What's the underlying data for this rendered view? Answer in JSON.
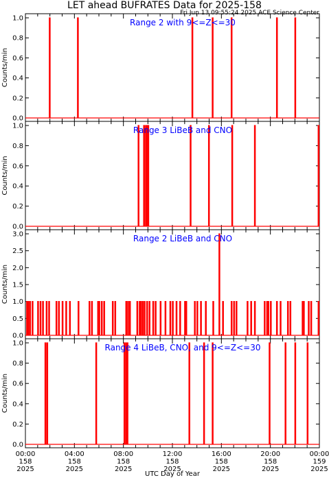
{
  "title": "LET ahead BUFRATES Data for 2025-158",
  "timestamp": "Fri Jun 13 09:55:24 2025 ACE Science Center",
  "xlabel": "UTC Day of Year",
  "colors": {
    "trace": "#ff0000",
    "label": "#0000ff",
    "axes": "#000000"
  },
  "x_ticks": [
    {
      "t": 0,
      "lines": [
        "00:00",
        "158",
        "2025"
      ]
    },
    {
      "t": 4,
      "lines": [
        "04:00",
        "158",
        "2025"
      ]
    },
    {
      "t": 8,
      "lines": [
        "08:00",
        "158",
        "2025"
      ]
    },
    {
      "t": 12,
      "lines": [
        "12:00",
        "158",
        "2025"
      ]
    },
    {
      "t": 16,
      "lines": [
        "16:00",
        "158",
        "2025"
      ]
    },
    {
      "t": 20,
      "lines": [
        "20:00",
        "158",
        "2025"
      ]
    },
    {
      "t": 24,
      "lines": [
        "00:00",
        "159",
        "2025"
      ]
    }
  ],
  "chart_data": [
    {
      "type": "line",
      "title": "Range 2 with 9<=Z<=30",
      "ylabel": "Counts/min",
      "ylim": [
        0,
        1.0
      ],
      "yticks": [
        "0.0",
        "0.2",
        "0.4",
        "0.6",
        "0.8",
        "1.0"
      ],
      "ytick_values": [
        0,
        0.2,
        0.4,
        0.6,
        0.8,
        1.0
      ],
      "xlim_hours": [
        0,
        24
      ],
      "spikes": [
        {
          "t": 1.95,
          "v": 1
        },
        {
          "t": 4.25,
          "v": 1
        },
        {
          "t": 13.6,
          "v": 1
        },
        {
          "t": 15.25,
          "v": 1
        },
        {
          "t": 16.8,
          "v": 1
        },
        {
          "t": 20.5,
          "v": 1
        },
        {
          "t": 22.0,
          "v": 1
        }
      ]
    },
    {
      "type": "line",
      "title": "Range 3 LiBeB and CNO",
      "ylabel": "Counts/min",
      "ylim": [
        0,
        1.0
      ],
      "yticks": [
        "0.0",
        "0.2",
        "0.4",
        "0.6",
        "0.8",
        "1.0"
      ],
      "ytick_values": [
        0,
        0.2,
        0.4,
        0.6,
        0.8,
        1.0
      ],
      "xlim_hours": [
        0,
        24
      ],
      "spikes": [
        {
          "t": 9.2,
          "v": 1
        },
        {
          "t": 9.65,
          "v": 1
        },
        {
          "t": 9.8,
          "v": 1
        },
        {
          "t": 9.9,
          "v": 1
        },
        {
          "t": 10.0,
          "v": 1
        },
        {
          "t": 13.45,
          "v": 1
        },
        {
          "t": 14.95,
          "v": 1
        },
        {
          "t": 16.85,
          "v": 1
        },
        {
          "t": 18.7,
          "v": 1
        },
        {
          "t": 23.9,
          "v": 1
        }
      ]
    },
    {
      "type": "line",
      "title": "Range 2 LiBeB and CNO",
      "ylabel": "Counts/min",
      "ylim": [
        0,
        3.0
      ],
      "yticks": [
        "0.0",
        "0.5",
        "1.0",
        "1.5",
        "2.0",
        "2.5",
        "3.0"
      ],
      "ytick_values": [
        0,
        0.5,
        1.0,
        1.5,
        2.0,
        2.5,
        3.0
      ],
      "xlim_hours": [
        0,
        24
      ],
      "spikes": [
        {
          "t": 0.1,
          "v": 1
        },
        {
          "t": 0.2,
          "v": 1
        },
        {
          "t": 0.35,
          "v": 1
        },
        {
          "t": 0.55,
          "v": 1
        },
        {
          "t": 1.0,
          "v": 1
        },
        {
          "t": 1.2,
          "v": 1
        },
        {
          "t": 1.4,
          "v": 1
        },
        {
          "t": 1.7,
          "v": 1
        },
        {
          "t": 1.9,
          "v": 1
        },
        {
          "t": 2.5,
          "v": 1
        },
        {
          "t": 2.7,
          "v": 1
        },
        {
          "t": 3.0,
          "v": 1
        },
        {
          "t": 3.3,
          "v": 1
        },
        {
          "t": 3.6,
          "v": 1
        },
        {
          "t": 4.3,
          "v": 1
        },
        {
          "t": 5.2,
          "v": 1
        },
        {
          "t": 5.4,
          "v": 1
        },
        {
          "t": 5.9,
          "v": 1
        },
        {
          "t": 6.0,
          "v": 1
        },
        {
          "t": 6.2,
          "v": 1
        },
        {
          "t": 6.4,
          "v": 1
        },
        {
          "t": 7.1,
          "v": 1
        },
        {
          "t": 7.3,
          "v": 1
        },
        {
          "t": 8.2,
          "v": 1
        },
        {
          "t": 8.35,
          "v": 1
        },
        {
          "t": 8.5,
          "v": 1
        },
        {
          "t": 9.1,
          "v": 1
        },
        {
          "t": 9.3,
          "v": 1
        },
        {
          "t": 9.4,
          "v": 1
        },
        {
          "t": 9.55,
          "v": 1
        },
        {
          "t": 9.7,
          "v": 1
        },
        {
          "t": 9.9,
          "v": 1
        },
        {
          "t": 10.1,
          "v": 1
        },
        {
          "t": 10.4,
          "v": 1
        },
        {
          "t": 10.6,
          "v": 1
        },
        {
          "t": 11.0,
          "v": 1
        },
        {
          "t": 11.4,
          "v": 1
        },
        {
          "t": 11.8,
          "v": 1
        },
        {
          "t": 12.0,
          "v": 1
        },
        {
          "t": 12.3,
          "v": 1
        },
        {
          "t": 12.6,
          "v": 1
        },
        {
          "t": 13.0,
          "v": 1
        },
        {
          "t": 13.1,
          "v": 1
        },
        {
          "t": 13.8,
          "v": 1
        },
        {
          "t": 14.0,
          "v": 1
        },
        {
          "t": 14.3,
          "v": 1
        },
        {
          "t": 14.7,
          "v": 1
        },
        {
          "t": 15.3,
          "v": 1
        },
        {
          "t": 15.8,
          "v": 3
        },
        {
          "t": 16.1,
          "v": 1
        },
        {
          "t": 16.8,
          "v": 1
        },
        {
          "t": 17.0,
          "v": 1
        },
        {
          "t": 17.2,
          "v": 1
        },
        {
          "t": 18.1,
          "v": 1
        },
        {
          "t": 18.4,
          "v": 1
        },
        {
          "t": 18.7,
          "v": 1
        },
        {
          "t": 19.5,
          "v": 1
        },
        {
          "t": 19.7,
          "v": 1
        },
        {
          "t": 19.8,
          "v": 1
        },
        {
          "t": 20.0,
          "v": 1
        },
        {
          "t": 20.5,
          "v": 1
        },
        {
          "t": 20.8,
          "v": 1
        },
        {
          "t": 21.4,
          "v": 1
        },
        {
          "t": 21.6,
          "v": 1
        },
        {
          "t": 22.6,
          "v": 1
        },
        {
          "t": 22.7,
          "v": 1
        },
        {
          "t": 23.1,
          "v": 1
        },
        {
          "t": 23.3,
          "v": 1
        },
        {
          "t": 23.9,
          "v": 1
        }
      ]
    },
    {
      "type": "line",
      "title": "Range 4 LiBeB, CNO, and 9<=Z<=30",
      "ylabel": "Counts/min",
      "ylim": [
        0,
        1.0
      ],
      "yticks": [
        "0.0",
        "0.2",
        "0.4",
        "0.6",
        "0.8",
        "1.0"
      ],
      "ytick_values": [
        0,
        0.2,
        0.4,
        0.6,
        0.8,
        1.0
      ],
      "xlim_hours": [
        0,
        24
      ],
      "spikes": [
        {
          "t": 1.6,
          "v": 1
        },
        {
          "t": 1.75,
          "v": 1
        },
        {
          "t": 5.75,
          "v": 1
        },
        {
          "t": 8.05,
          "v": 1
        },
        {
          "t": 8.2,
          "v": 1
        },
        {
          "t": 8.3,
          "v": 1
        },
        {
          "t": 13.35,
          "v": 1
        },
        {
          "t": 14.55,
          "v": 1
        },
        {
          "t": 15.25,
          "v": 1
        },
        {
          "t": 19.9,
          "v": 1
        },
        {
          "t": 21.2,
          "v": 1
        },
        {
          "t": 22.0,
          "v": 1
        },
        {
          "t": 23.0,
          "v": 1
        }
      ]
    }
  ]
}
